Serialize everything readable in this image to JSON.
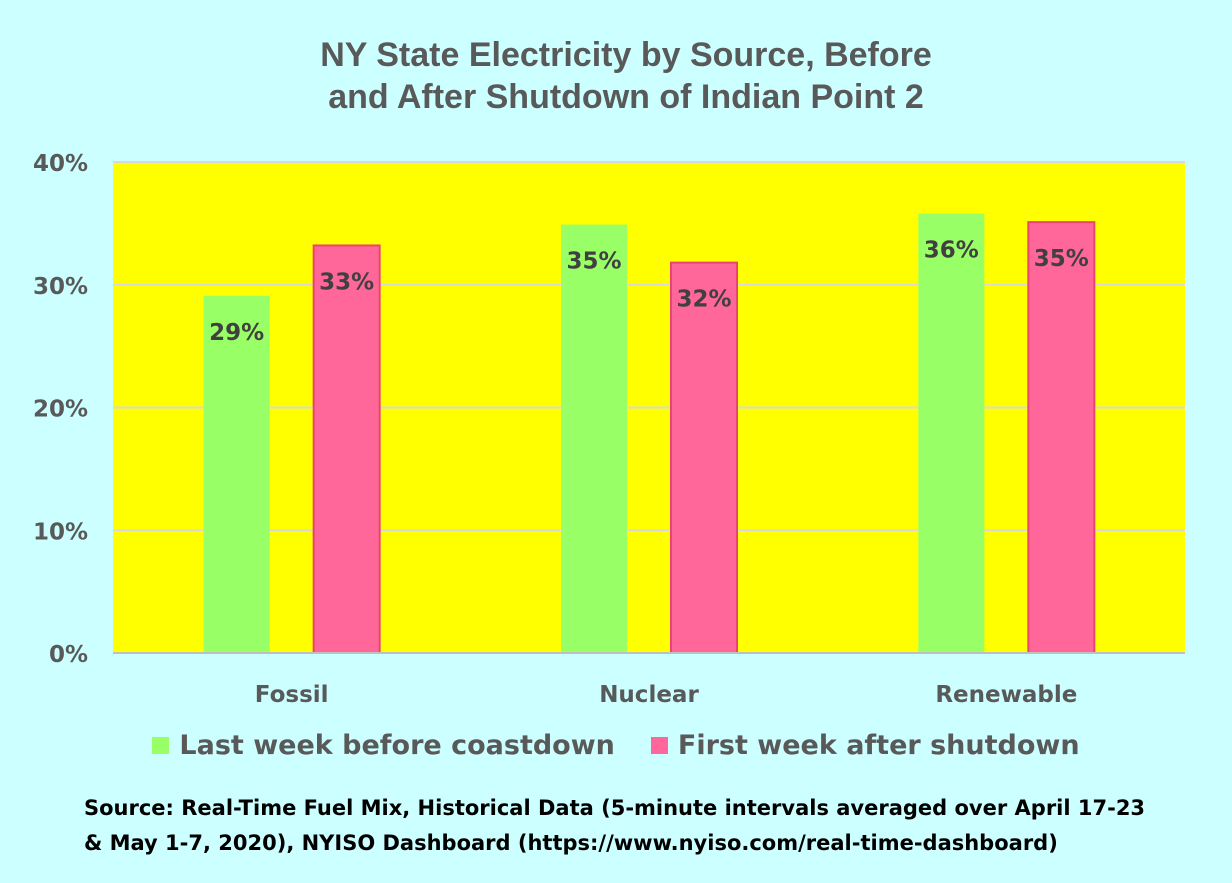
{
  "chart_data": {
    "type": "bar",
    "title_lines": [
      "NY State Electricity by Source, Before",
      "and After Shutdown of Indian Point 2"
    ],
    "categories": [
      "Fossil",
      "Nuclear",
      "Renewable"
    ],
    "series": [
      {
        "name": "Last week before coastdown",
        "values": [
          29.1,
          34.9,
          35.8
        ],
        "labels": [
          "29%",
          "35%",
          "36%"
        ],
        "color": "#99ff66"
      },
      {
        "name": "First week after shutdown",
        "values": [
          33.2,
          31.8,
          35.1
        ],
        "labels": [
          "33%",
          "32%",
          "35%"
        ],
        "color": "#ff6699"
      }
    ],
    "ylim": [
      0,
      40
    ],
    "yticks": [
      "0%",
      "10%",
      "20%",
      "30%",
      "40%"
    ],
    "plot_background": "#ffff00",
    "page_background": "#ccffff",
    "grid": true,
    "legend_position": "bottom"
  },
  "source_lines": [
    "Source: Real-Time Fuel Mix, Historical Data (5-minute intervals averaged over April 17-23",
    "& May 1-7, 2020), NYISO Dashboard  (https://www.nyiso.com/real-time-dashboard)"
  ]
}
